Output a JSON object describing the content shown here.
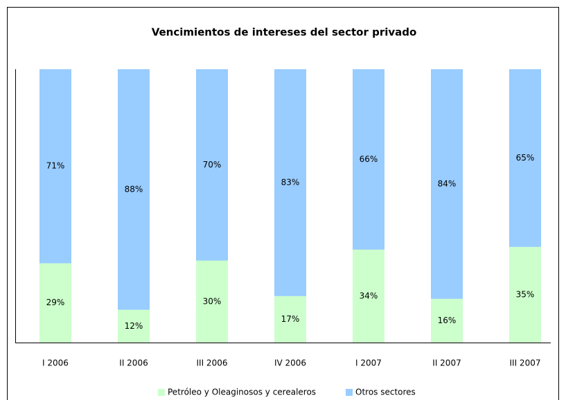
{
  "chart_data": {
    "type": "stacked_bar",
    "title": "Vencimientos de intereses del sector privado",
    "categories": [
      "I 2006",
      "II 2006",
      "III 2006",
      "IV 2006",
      "I 2007",
      "II 2007",
      "III 2007"
    ],
    "ylim": [
      0,
      100
    ],
    "legend": "bottom",
    "series": [
      {
        "name": "Petróleo y Oleaginosos y cerealeros",
        "color": "#ccffcc",
        "values": [
          29,
          12,
          30,
          17,
          34,
          16,
          35
        ],
        "value_labels": [
          "29%",
          "12%",
          "30%",
          "17%",
          "34%",
          "16%",
          "35%"
        ]
      },
      {
        "name": "Otros sectores",
        "color": "#99ccff",
        "values": [
          71,
          88,
          70,
          83,
          66,
          84,
          65
        ],
        "value_labels": [
          "71%",
          "88%",
          "70%",
          "83%",
          "66%",
          "84%",
          "65%"
        ]
      }
    ]
  }
}
